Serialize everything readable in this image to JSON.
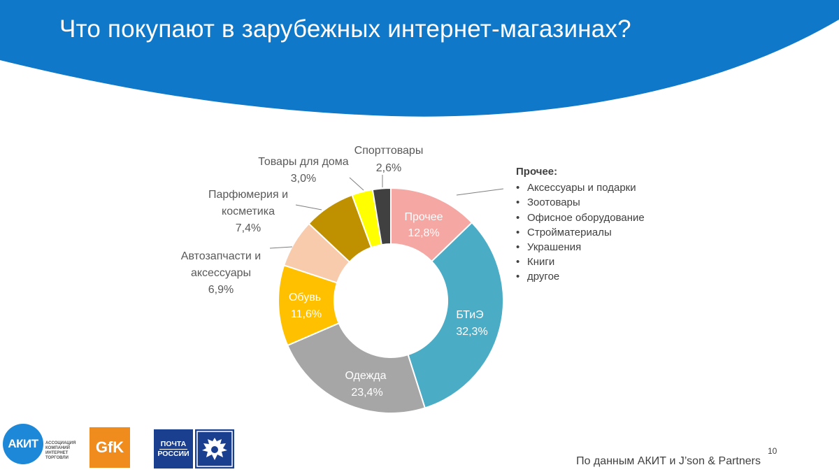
{
  "page": {
    "title": "Что покупают в зарубежных интернет-магазинах?",
    "source": "По данным АКИТ и J’son & Partners",
    "page_number": "10"
  },
  "colors": {
    "header_blue": "#0f78c8",
    "prochee": "#f4a7a3",
    "btie": "#4bacc6",
    "odezhda": "#a6a6a6",
    "obuv": "#ffc000",
    "avtozapchasti": "#f8cbad",
    "parfyumeriya": "#bf9000",
    "tovary_dlya_doma": "#ffff00",
    "sporttovary": "#404040"
  },
  "chart_data": {
    "type": "pie",
    "donut": true,
    "title": "",
    "slices": [
      {
        "label": "Прочее",
        "value": 12.8,
        "value_label": "12,8%"
      },
      {
        "label": "БТиЭ",
        "value": 32.3,
        "value_label": "32,3%"
      },
      {
        "label": "Одежда",
        "value": 23.4,
        "value_label": "23,4%"
      },
      {
        "label": "Обувь",
        "value": 11.6,
        "value_label": "11,6%"
      },
      {
        "label": "Автозапчасти и аксессуары",
        "value": 6.9,
        "value_label": "6,9%"
      },
      {
        "label": "Парфюмерия и косметика",
        "value": 7.4,
        "value_label": "7,4%"
      },
      {
        "label": "Товары для дома",
        "value": 3.0,
        "value_label": "3,0%"
      },
      {
        "label": "Спорттовары",
        "value": 2.6,
        "value_label": "2,6%"
      }
    ],
    "outer_labels": {
      "avto_line1": "Автозапчасти и",
      "avto_line2": "аксессуары",
      "parf_line1": "Парфюмерия и",
      "parf_line2": "косметика",
      "doma_line1": "Товары для дома",
      "sport_line1": "Спорттовары"
    }
  },
  "others_note": {
    "heading": "Прочее:",
    "items": [
      "Аксессуары и подарки",
      "Зоотовары",
      "Офисное оборудование",
      "Стройматериалы",
      "Украшения",
      "Книги",
      "другое"
    ]
  },
  "logos": {
    "akit": "АКИТ",
    "akit_text": "АССОЦИАЦИЯ КОМПАНИЙ ИНТЕРНЕТ ТОРГОВЛИ",
    "gfk": "GfK",
    "pochta_line1": "ПОЧТА",
    "pochta_line2": "РОССИИ"
  }
}
